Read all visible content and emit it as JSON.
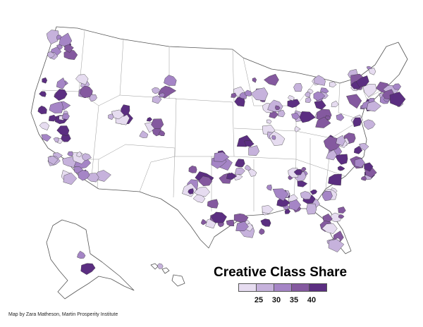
{
  "map": {
    "legend_title": "Creative Class Share",
    "legend_colors": [
      "#e6dcf0",
      "#c6b2dc",
      "#a585c6",
      "#84599f",
      "#5b2e81"
    ],
    "legend_ticks": [
      "25",
      "30",
      "35",
      "40"
    ],
    "credit": "Map by Zara Matheson, Martin Prosperity Institute",
    "outline_color": "#555555",
    "state_border_color": "#888888"
  }
}
